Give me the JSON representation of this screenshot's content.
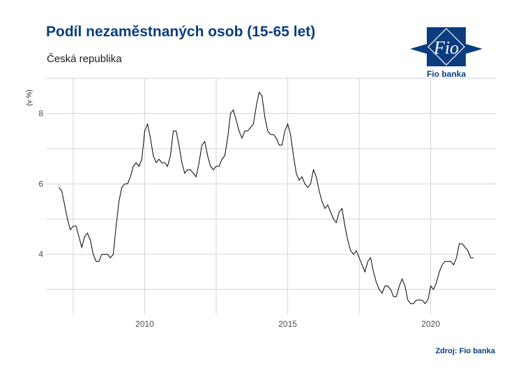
{
  "title": "Podíl nezaměstnaných osob (15-65 let)",
  "subtitle": "Česká republika",
  "source": "Zdroj: Fio banka",
  "logo": {
    "mark_text": "Fio",
    "bank_text": "Fio banka"
  },
  "colors": {
    "title": "#0a3d7f",
    "line": "#000000",
    "grid": "#d3d3d3"
  },
  "chart_data": {
    "type": "line",
    "title": "Podíl nezaměstnaných osob (15-65 let)",
    "subtitle": "Česká republika",
    "ylabel": "(v %)",
    "xlabel": "",
    "xlim": [
      2006.55,
      2022.3
    ],
    "ylim": [
      2.3,
      9.0
    ],
    "xticks": [
      2010,
      2015,
      2020
    ],
    "yticks": [
      4,
      6,
      8
    ],
    "grid": true,
    "series": [
      {
        "x": [
          2007.0,
          2007.1,
          2007.2,
          2007.3,
          2007.4,
          2007.5,
          2007.6,
          2007.7,
          2007.8,
          2007.9,
          2008.0,
          2008.1,
          2008.2,
          2008.3,
          2008.4,
          2008.5,
          2008.6,
          2008.7,
          2008.8,
          2008.9,
          2009.0,
          2009.1,
          2009.2,
          2009.3,
          2009.4,
          2009.5,
          2009.6,
          2009.7,
          2009.8,
          2009.9,
          2010.0,
          2010.1,
          2010.2,
          2010.3,
          2010.4,
          2010.5,
          2010.6,
          2010.7,
          2010.8,
          2010.9,
          2011.0,
          2011.1,
          2011.2,
          2011.3,
          2011.4,
          2011.5,
          2011.6,
          2011.7,
          2011.8,
          2011.9,
          2012.0,
          2012.1,
          2012.2,
          2012.3,
          2012.4,
          2012.5,
          2012.6,
          2012.7,
          2012.8,
          2012.9,
          2013.0,
          2013.1,
          2013.2,
          2013.3,
          2013.4,
          2013.5,
          2013.6,
          2013.7,
          2013.8,
          2013.9,
          2014.0,
          2014.1,
          2014.2,
          2014.3,
          2014.4,
          2014.5,
          2014.6,
          2014.7,
          2014.8,
          2014.9,
          2015.0,
          2015.1,
          2015.2,
          2015.3,
          2015.4,
          2015.5,
          2015.6,
          2015.7,
          2015.8,
          2015.9,
          2016.0,
          2016.1,
          2016.2,
          2016.3,
          2016.4,
          2016.5,
          2016.6,
          2016.7,
          2016.8,
          2016.9,
          2017.0,
          2017.1,
          2017.2,
          2017.3,
          2017.4,
          2017.5,
          2017.6,
          2017.7,
          2017.8,
          2017.9,
          2018.0,
          2018.1,
          2018.2,
          2018.3,
          2018.4,
          2018.5,
          2018.6,
          2018.7,
          2018.8,
          2018.9,
          2019.0,
          2019.1,
          2019.2,
          2019.3,
          2019.4,
          2019.5,
          2019.6,
          2019.7,
          2019.8,
          2019.9,
          2020.0,
          2020.1,
          2020.2,
          2020.3,
          2020.4,
          2020.5,
          2020.6,
          2020.7,
          2020.8,
          2020.9,
          2021.0,
          2021.1,
          2021.2,
          2021.3,
          2021.4,
          2021.5
        ],
        "values": [
          5.9,
          5.8,
          5.4,
          5.0,
          4.7,
          4.8,
          4.8,
          4.5,
          4.2,
          4.5,
          4.6,
          4.4,
          4.0,
          3.8,
          3.8,
          4.0,
          4.0,
          4.0,
          3.9,
          4.0,
          4.8,
          5.5,
          5.9,
          6.0,
          6.0,
          6.2,
          6.5,
          6.6,
          6.5,
          6.7,
          7.5,
          7.7,
          7.3,
          6.8,
          6.6,
          6.7,
          6.6,
          6.6,
          6.5,
          6.8,
          7.5,
          7.5,
          7.1,
          6.6,
          6.3,
          6.4,
          6.4,
          6.3,
          6.2,
          6.6,
          7.1,
          7.2,
          6.8,
          6.5,
          6.4,
          6.5,
          6.5,
          6.7,
          6.8,
          7.3,
          8.0,
          8.1,
          7.8,
          7.5,
          7.3,
          7.5,
          7.5,
          7.6,
          7.7,
          8.2,
          8.6,
          8.5,
          7.9,
          7.5,
          7.4,
          7.4,
          7.3,
          7.1,
          7.1,
          7.5,
          7.7,
          7.4,
          6.8,
          6.3,
          6.1,
          6.2,
          6.0,
          5.9,
          6.0,
          6.4,
          6.2,
          5.8,
          5.5,
          5.3,
          5.4,
          5.2,
          5.0,
          4.9,
          5.2,
          5.3,
          4.8,
          4.4,
          4.1,
          4.0,
          4.1,
          3.9,
          3.7,
          3.5,
          3.8,
          3.9,
          3.5,
          3.2,
          3.0,
          2.9,
          3.1,
          3.1,
          3.0,
          2.8,
          2.8,
          3.1,
          3.3,
          3.1,
          2.7,
          2.6,
          2.6,
          2.7,
          2.7,
          2.7,
          2.6,
          2.7,
          3.1,
          3.0,
          3.2,
          3.5,
          3.7,
          3.8,
          3.8,
          3.8,
          3.7,
          3.9,
          4.3,
          4.3,
          4.2,
          4.1,
          3.9,
          3.9
        ]
      }
    ]
  }
}
